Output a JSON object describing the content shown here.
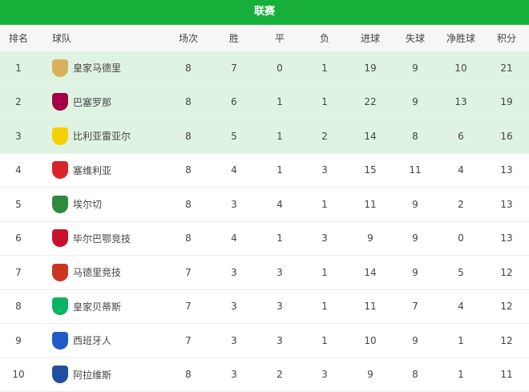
{
  "title": "联赛",
  "headers": [
    "排名",
    "球队",
    "场次",
    "胜",
    "平",
    "负",
    "进球",
    "失球",
    "净胜球",
    "积分"
  ],
  "highlight_color": "#dff3e2",
  "accent_color": "#17b03a",
  "rows": [
    {
      "rank": "1",
      "team": "皇家马德里",
      "icon": "real-madrid-crest-icon",
      "color": "#d9b15a",
      "p": "8",
      "w": "7",
      "d": "0",
      "l": "1",
      "gf": "19",
      "ga": "9",
      "gd": "10",
      "pts": "21"
    },
    {
      "rank": "2",
      "team": "巴塞罗那",
      "icon": "barcelona-crest-icon",
      "color": "#a50044",
      "p": "8",
      "w": "6",
      "d": "1",
      "l": "1",
      "gf": "22",
      "ga": "9",
      "gd": "13",
      "pts": "19"
    },
    {
      "rank": "3",
      "team": "比利亚雷亚尔",
      "icon": "villarreal-crest-icon",
      "color": "#f5d000",
      "p": "8",
      "w": "5",
      "d": "1",
      "l": "2",
      "gf": "14",
      "ga": "8",
      "gd": "6",
      "pts": "16"
    },
    {
      "rank": "4",
      "team": "塞维利亚",
      "icon": "sevilla-crest-icon",
      "color": "#d8232a",
      "p": "8",
      "w": "4",
      "d": "1",
      "l": "3",
      "gf": "15",
      "ga": "11",
      "gd": "4",
      "pts": "13"
    },
    {
      "rank": "5",
      "team": "埃尔切",
      "icon": "elche-crest-icon",
      "color": "#2e8b3e",
      "p": "8",
      "w": "3",
      "d": "4",
      "l": "1",
      "gf": "11",
      "ga": "9",
      "gd": "2",
      "pts": "13"
    },
    {
      "rank": "6",
      "team": "毕尔巴鄂竞技",
      "icon": "athletic-bilbao-crest-icon",
      "color": "#c8102e",
      "p": "8",
      "w": "4",
      "d": "1",
      "l": "3",
      "gf": "9",
      "ga": "9",
      "gd": "0",
      "pts": "13"
    },
    {
      "rank": "7",
      "team": "马德里竞技",
      "icon": "atletico-madrid-crest-icon",
      "color": "#cb3524",
      "p": "7",
      "w": "3",
      "d": "3",
      "l": "1",
      "gf": "14",
      "ga": "9",
      "gd": "5",
      "pts": "12"
    },
    {
      "rank": "8",
      "team": "皇家贝蒂斯",
      "icon": "real-betis-crest-icon",
      "color": "#0bb363",
      "p": "7",
      "w": "3",
      "d": "3",
      "l": "1",
      "gf": "11",
      "ga": "7",
      "gd": "4",
      "pts": "12"
    },
    {
      "rank": "9",
      "team": "西班牙人",
      "icon": "espanyol-crest-icon",
      "color": "#1e5bc6",
      "p": "7",
      "w": "3",
      "d": "3",
      "l": "1",
      "gf": "10",
      "ga": "9",
      "gd": "1",
      "pts": "12"
    },
    {
      "rank": "10",
      "team": "阿拉维斯",
      "icon": "alaves-crest-icon",
      "color": "#1f4fa0",
      "p": "8",
      "w": "3",
      "d": "2",
      "l": "3",
      "gf": "9",
      "ga": "8",
      "gd": "1",
      "pts": "11"
    }
  ]
}
